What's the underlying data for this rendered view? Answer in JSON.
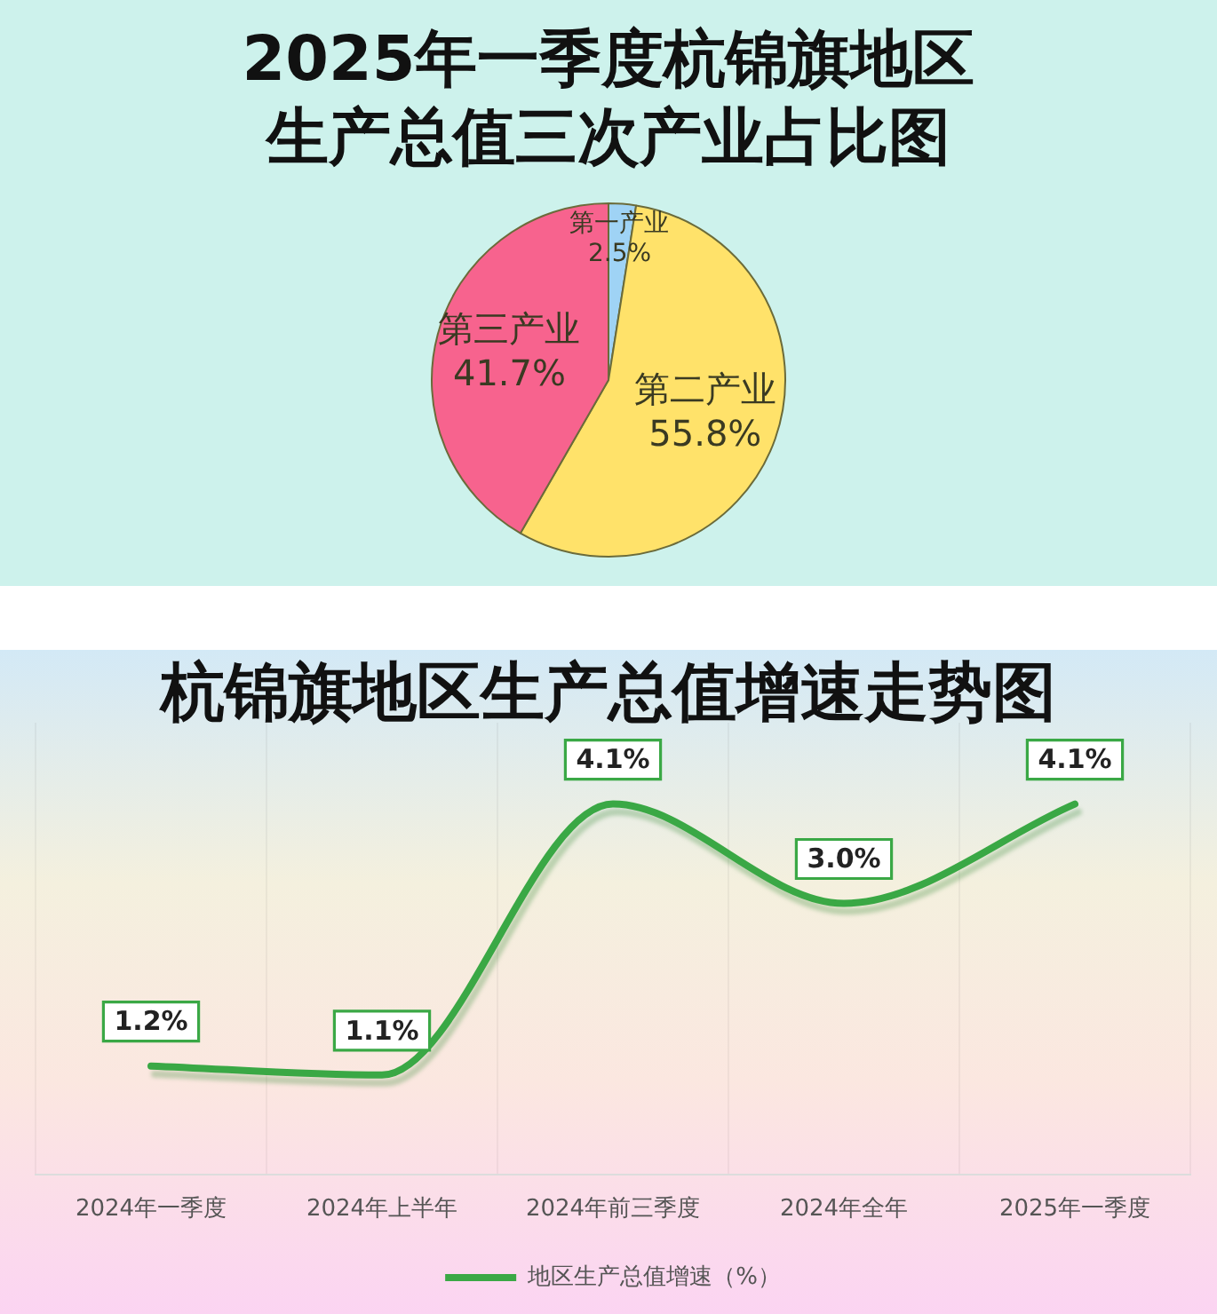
{
  "chart_data": [
    {
      "type": "pie",
      "title": "2025年一季度杭锦旗地区生产总值三次产业占比图",
      "categories": [
        "第一产业",
        "第二产业",
        "第三产业"
      ],
      "values": [
        2.5,
        55.8,
        41.7
      ],
      "colors": [
        "#9fd3f5",
        "#ffe26a",
        "#f7638e"
      ],
      "value_labels": [
        "2.5%",
        "55.8%",
        "41.7%"
      ]
    },
    {
      "type": "line",
      "title": "杭锦旗地区生产总值增速走势图",
      "categories": [
        "2024年一季度",
        "2024年上半年",
        "2024年前三季度",
        "2024年全年",
        "2025年一季度"
      ],
      "series": [
        {
          "name": "地区生产总值增速（%）",
          "color": "#3aa845",
          "values": [
            1.2,
            1.1,
            4.1,
            3.0,
            4.1
          ],
          "value_labels": [
            "1.2%",
            "1.1%",
            "4.1%",
            "3.0%",
            "4.1%"
          ]
        }
      ],
      "ylim": [
        0,
        5
      ],
      "tick_labels": "x",
      "grid": "x",
      "legend": "bottom",
      "marker": "none",
      "line_style": "solid"
    }
  ]
}
